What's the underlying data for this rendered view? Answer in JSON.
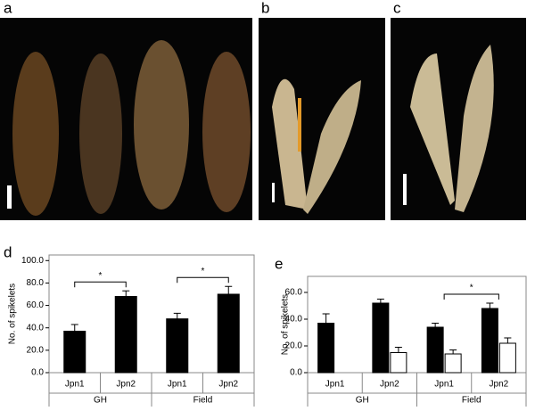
{
  "panel_labels": [
    "a",
    "b",
    "c",
    "d",
    "e"
  ],
  "chart_data": [
    {
      "type": "bar",
      "y_label": "No. of spikelets",
      "categories": [
        "Jpn1",
        "Jpn2",
        "Jpn1",
        "Jpn2"
      ],
      "group_labels": [
        "GH",
        "Field"
      ],
      "series": [
        {
          "color": "#000000",
          "values": [
            37,
            68,
            48,
            70
          ],
          "errors": [
            6,
            5,
            5,
            7
          ]
        }
      ],
      "ylim": [
        0,
        105
      ],
      "yticks": [
        {
          "value": 0,
          "label": "0.0"
        },
        {
          "value": 20,
          "label": "20.0"
        },
        {
          "value": 40,
          "label": "40.0"
        },
        {
          "value": 60,
          "label": "60.0"
        },
        {
          "value": 80,
          "label": "80.0"
        },
        {
          "value": 100,
          "label": "100.0"
        }
      ],
      "significance": [
        {
          "label": "*",
          "categories": [
            0,
            1
          ]
        },
        {
          "label": "*",
          "categories": [
            2,
            3
          ]
        }
      ]
    },
    {
      "type": "bar",
      "y_label": "No. of spikelets",
      "categories": [
        "Jpn1",
        "Jpn2",
        "Jpn1",
        "Jpn2"
      ],
      "group_labels": [
        "GH",
        "Field"
      ],
      "series": [
        {
          "color": "#000000",
          "values": [
            37,
            52,
            34,
            48
          ],
          "errors": [
            7,
            3,
            3,
            4
          ]
        },
        {
          "color": "#ffffff",
          "values": [
            null,
            15,
            14,
            22
          ],
          "errors": [
            null,
            4,
            3,
            4
          ]
        }
      ],
      "ylim": [
        0,
        72
      ],
      "yticks": [
        {
          "value": 0,
          "label": "0.0"
        },
        {
          "value": 20,
          "label": "20.0"
        },
        {
          "value": 40,
          "label": "40.0"
        },
        {
          "value": 60,
          "label": "60.0"
        }
      ],
      "significance": [
        {
          "label": "*",
          "categories": [
            2,
            3
          ]
        }
      ]
    }
  ]
}
